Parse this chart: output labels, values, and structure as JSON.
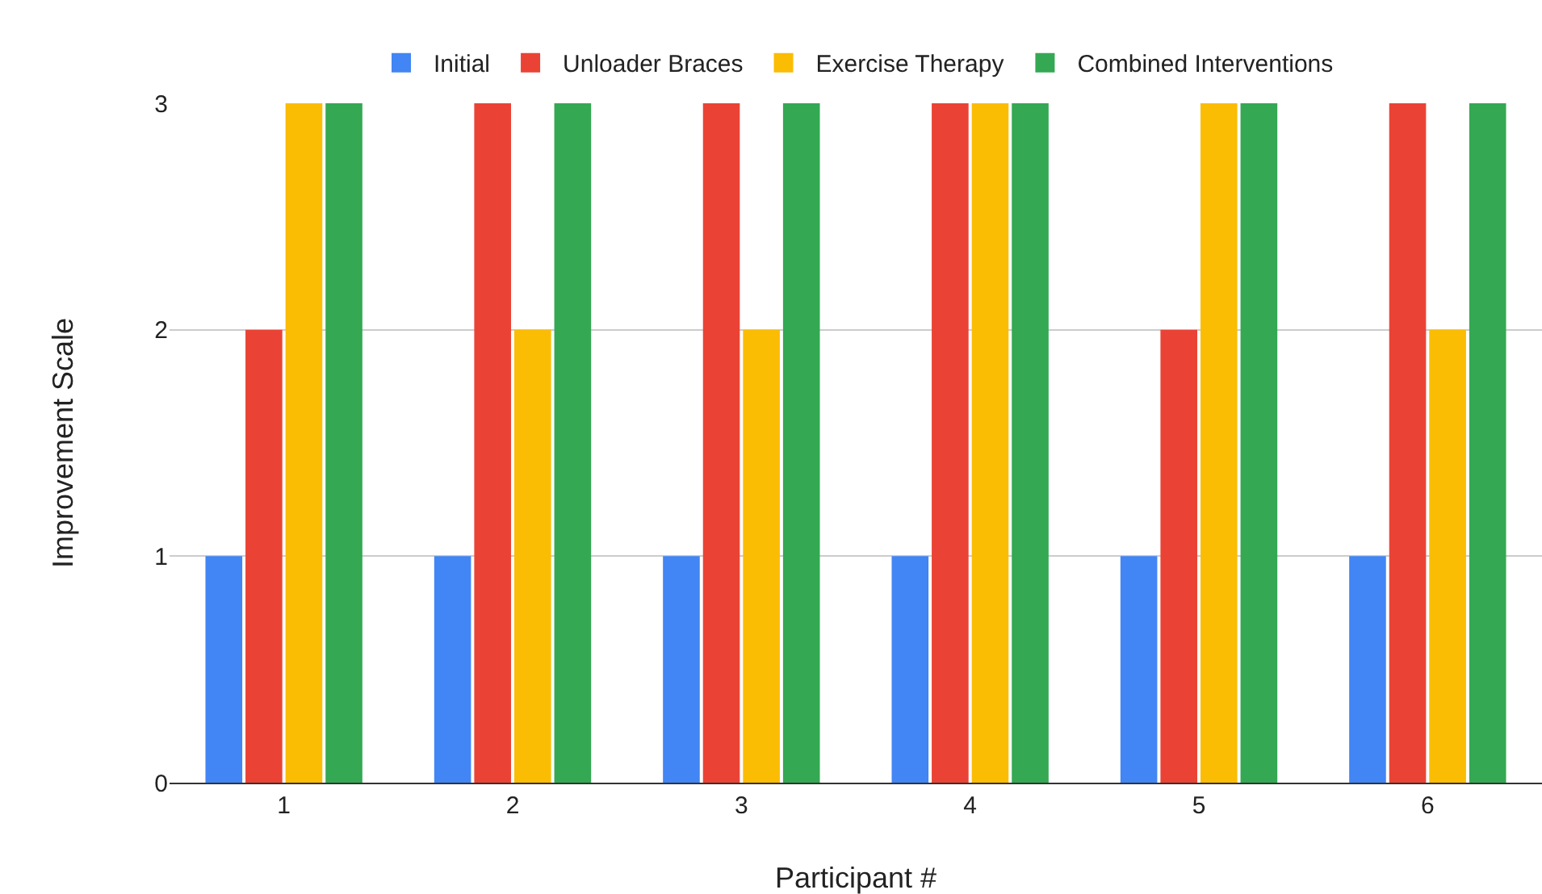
{
  "chart_data": {
    "type": "bar",
    "xlabel": "Participant #",
    "ylabel": "Improvement Scale",
    "categories": [
      "1",
      "2",
      "3",
      "4",
      "5",
      "6"
    ],
    "series": [
      {
        "name": "Initial",
        "color": "#4285f4",
        "values": [
          1,
          1,
          1,
          1,
          1,
          1
        ]
      },
      {
        "name": "Unloader Braces",
        "color": "#ea4335",
        "values": [
          2,
          3,
          3,
          3,
          2,
          3
        ]
      },
      {
        "name": "Exercise Therapy",
        "color": "#fbbc04",
        "values": [
          3,
          2,
          2,
          3,
          3,
          2
        ]
      },
      {
        "name": "Combined Interventions",
        "color": "#34a853",
        "values": [
          3,
          3,
          3,
          3,
          3,
          3
        ]
      }
    ],
    "ylim": [
      0,
      3
    ],
    "yticks": [
      0,
      1,
      2,
      3
    ],
    "grid": "y",
    "legend": "top"
  }
}
